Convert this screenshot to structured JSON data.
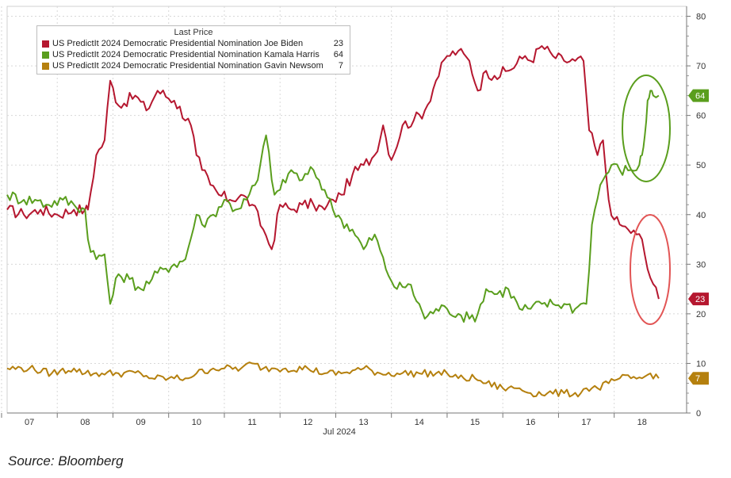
{
  "chart_data": {
    "type": "line",
    "legend_title": "Last Price",
    "legend_placement": "top-left",
    "xlabel": "Jul 2024",
    "x_ticks": [
      "07",
      "08",
      "09",
      "10",
      "11",
      "12",
      "13",
      "14",
      "15",
      "16",
      "17",
      "18"
    ],
    "y_ticks": [
      "0",
      "10",
      "20",
      "30",
      "40",
      "50",
      "60",
      "70",
      "80"
    ],
    "xlim": [
      6.6,
      18.8
    ],
    "ylim": [
      0,
      82
    ],
    "grid": true,
    "series": [
      {
        "name": "US PredictIt 2024 Democratic Presidential Nomination Joe Biden",
        "last": "23",
        "color": "#b5172f",
        "x": [
          6.6,
          6.9,
          7.2,
          7.5,
          7.8,
          8.0,
          8.05,
          8.2,
          8.35,
          8.45,
          8.6,
          8.9,
          9.1,
          9.3,
          9.6,
          9.9,
          10.0,
          10.1,
          10.25,
          10.4,
          10.6,
          10.8,
          11.0,
          11.2,
          11.35,
          11.5,
          11.7,
          11.9,
          12.1,
          12.3,
          12.45,
          12.6,
          12.8,
          13.0,
          13.2,
          13.35,
          13.5,
          13.7,
          13.9,
          14.1,
          14.3,
          14.5,
          14.7,
          14.9,
          15.05,
          15.2,
          15.35,
          15.6,
          15.9,
          16.0,
          16.2,
          16.4,
          16.6,
          16.8,
          16.95,
          17.05,
          17.2,
          17.3,
          17.4,
          17.5,
          17.6,
          17.75,
          17.9,
          18.0,
          18.1,
          18.2,
          18.3
        ],
        "values": [
          41,
          40,
          41,
          40,
          41,
          41,
          41,
          52,
          55,
          67,
          62,
          64,
          61,
          65,
          63,
          58,
          52,
          49,
          46,
          44,
          43,
          44,
          42,
          37,
          33,
          42,
          41,
          42,
          42,
          41,
          43,
          44,
          48,
          50,
          52,
          58,
          51,
          58,
          59,
          61,
          67,
          72,
          73,
          71,
          65,
          69,
          68,
          69,
          72,
          71,
          74,
          72,
          71,
          71,
          71,
          57,
          52,
          55,
          43,
          39,
          38,
          37,
          36,
          35,
          29,
          26,
          23
        ]
      },
      {
        "name": "US PredictIt 2024 Democratic Presidential Nomination Kamala Harris",
        "last": "64",
        "color": "#5a9e1d",
        "x": [
          6.6,
          6.9,
          7.1,
          7.3,
          7.6,
          7.8,
          8.0,
          8.05,
          8.2,
          8.35,
          8.45,
          8.6,
          8.8,
          9.0,
          9.2,
          9.4,
          9.6,
          9.8,
          10.0,
          10.1,
          10.3,
          10.5,
          10.7,
          10.9,
          11.1,
          11.25,
          11.4,
          11.5,
          11.7,
          11.9,
          12.1,
          12.3,
          12.45,
          12.6,
          12.8,
          13.0,
          13.2,
          13.4,
          13.6,
          13.8,
          14.0,
          14.1,
          14.3,
          14.5,
          14.7,
          14.9,
          15.05,
          15.2,
          15.4,
          15.6,
          15.8,
          16.0,
          16.2,
          16.4,
          16.6,
          16.8,
          16.9,
          17.0,
          17.1,
          17.25,
          17.35,
          17.45,
          17.6,
          17.8,
          17.95,
          18.0,
          18.05,
          18.1,
          18.15,
          18.2,
          18.3
        ],
        "values": [
          44,
          43,
          43,
          42,
          43,
          42,
          41,
          35,
          31,
          32,
          22,
          28,
          27,
          25,
          27,
          29,
          30,
          31,
          40,
          38,
          40,
          43,
          41,
          43,
          47,
          56,
          44,
          45,
          49,
          47,
          49,
          45,
          41,
          39,
          37,
          33,
          36,
          29,
          25,
          26,
          22,
          19,
          21,
          21,
          20,
          19,
          20,
          25,
          24,
          25,
          21,
          21,
          22,
          22,
          22,
          21,
          22,
          22,
          38,
          46,
          48,
          50,
          49,
          49,
          50,
          52,
          56,
          63,
          65,
          64,
          64
        ]
      },
      {
        "name": "US PredictIt 2024 Democratic Presidential Nomination Gavin Newsom",
        "last": "7",
        "color": "#b5800e",
        "x": [
          6.6,
          7.0,
          7.4,
          7.8,
          8.0,
          8.3,
          8.6,
          9.0,
          9.2,
          9.5,
          9.8,
          10.0,
          10.3,
          10.5,
          10.8,
          11.0,
          11.2,
          11.4,
          11.6,
          12.0,
          12.3,
          12.6,
          13.0,
          13.3,
          13.6,
          14.0,
          14.3,
          14.5,
          14.7,
          15.0,
          15.2,
          15.5,
          15.8,
          16.0,
          16.3,
          16.6,
          16.9,
          17.0,
          17.2,
          17.4,
          17.6,
          17.8,
          18.0,
          18.15,
          18.3
        ],
        "values": [
          9,
          9,
          8,
          9,
          8,
          8,
          8,
          8,
          7,
          7,
          7,
          8,
          9,
          9,
          9,
          10,
          9,
          9,
          9,
          9,
          8,
          8,
          9,
          8,
          8,
          8,
          8,
          8,
          7,
          7,
          6,
          5,
          5,
          4,
          4,
          4,
          4,
          5,
          5,
          6,
          7,
          7,
          7,
          8,
          7
        ]
      }
    ]
  },
  "source": "Source: Bloomberg"
}
